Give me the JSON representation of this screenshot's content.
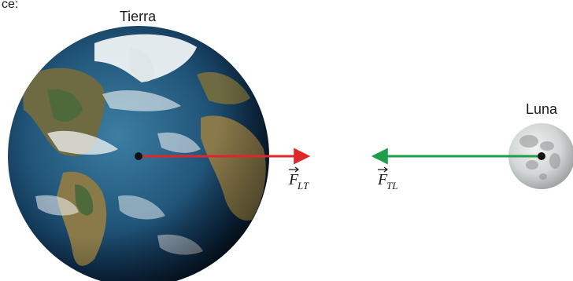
{
  "top_left_fragment": "ce:",
  "earth": {
    "label": "Tierra"
  },
  "moon": {
    "label": "Luna"
  },
  "forces": {
    "moon_on_earth": {
      "symbol": "F",
      "subscript": "LT",
      "color": "#e0262b"
    },
    "earth_on_moon": {
      "symbol": "F",
      "subscript": "TL",
      "color": "#1e9e4a"
    }
  },
  "colors": {
    "ocean_deep": "#0c2c4f",
    "ocean": "#2a6a8f",
    "land": "#8a7a4a",
    "land_green": "#4f6a3a",
    "ice": "#eef2f4",
    "moon_base": "#d9dcdc",
    "moon_dark": "#8d9192",
    "point": "#111111"
  }
}
